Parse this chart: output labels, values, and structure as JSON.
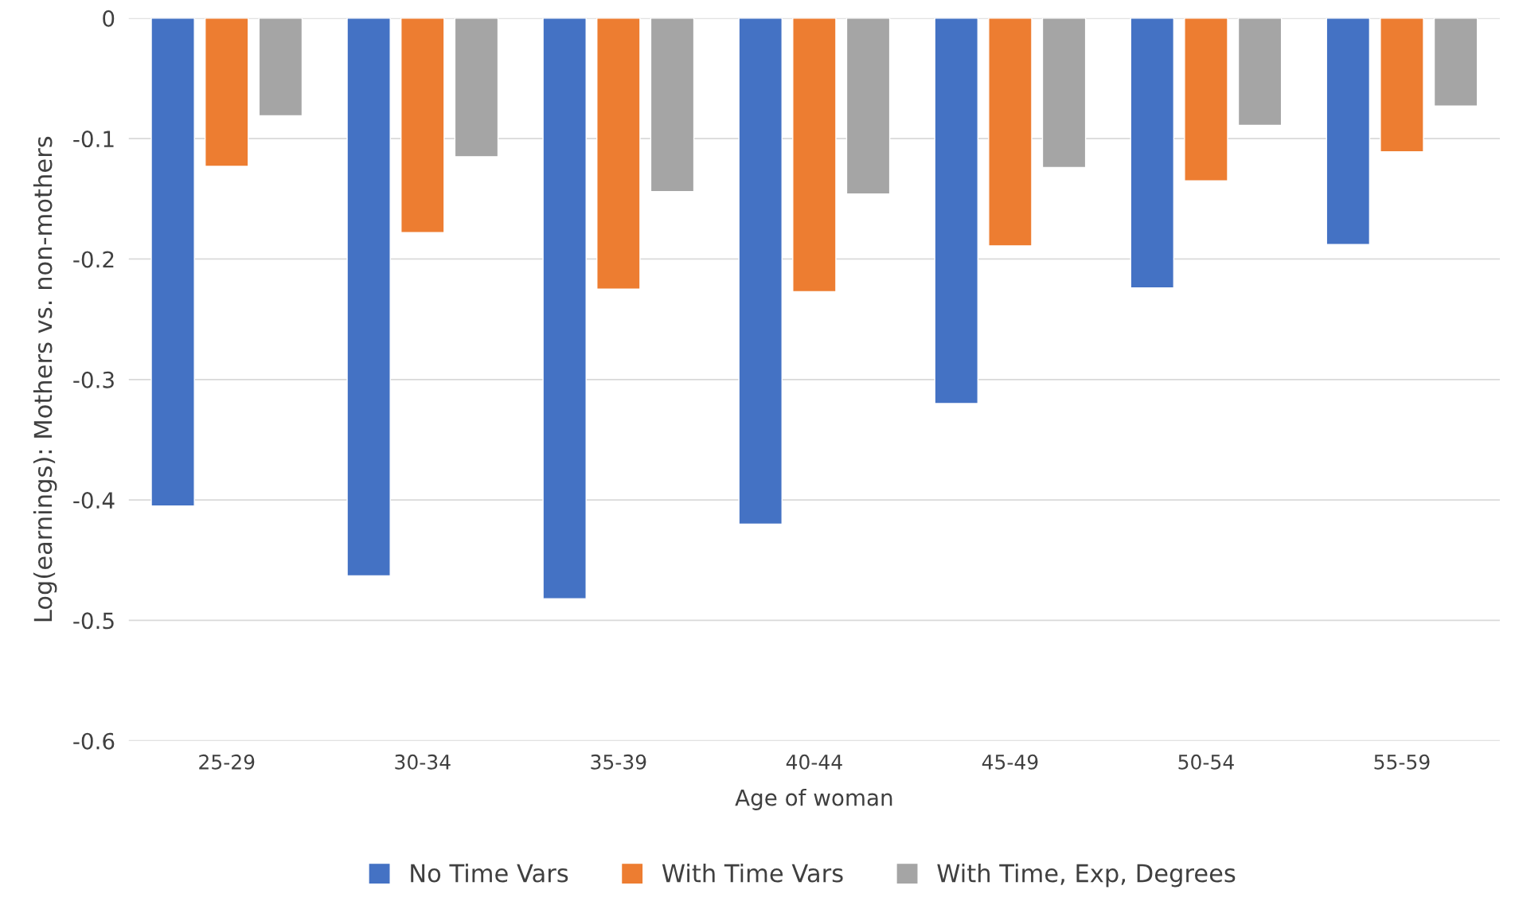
{
  "chart_data": {
    "type": "bar",
    "xlabel": "Age of woman",
    "ylabel": "Log(earnings): Mothers vs. non-mothers",
    "categories": [
      "25-29",
      "30-34",
      "35-39",
      "40-44",
      "45-49",
      "50-54",
      "55-59"
    ],
    "series": [
      {
        "name": "No Time Vars",
        "color": "#4472c4",
        "values": [
          -0.405,
          -0.463,
          -0.482,
          -0.42,
          -0.32,
          -0.224,
          -0.188
        ]
      },
      {
        "name": "With Time Vars",
        "color": "#ed7d31",
        "values": [
          -0.123,
          -0.178,
          -0.225,
          -0.227,
          -0.189,
          -0.135,
          -0.111
        ]
      },
      {
        "name": "With Time, Exp, Degrees",
        "color": "#a5a5a5",
        "values": [
          -0.081,
          -0.115,
          -0.144,
          -0.146,
          -0.124,
          -0.089,
          -0.073
        ]
      }
    ],
    "ylim": [
      -0.6,
      0
    ],
    "yticks": [
      {
        "value": -0.6,
        "label": "-0.6"
      },
      {
        "value": -0.5,
        "label": "-0.5"
      },
      {
        "value": -0.4,
        "label": "-0.4"
      },
      {
        "value": -0.3,
        "label": "-0.3"
      },
      {
        "value": -0.2,
        "label": "-0.2"
      },
      {
        "value": -0.1,
        "label": "-0.1"
      },
      0
    ],
    "grid": "y",
    "legend": "bottom"
  }
}
